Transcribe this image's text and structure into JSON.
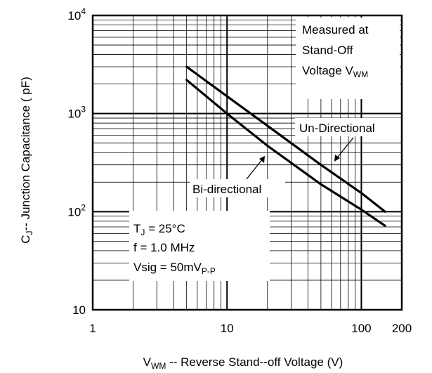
{
  "chart_data": {
    "type": "line",
    "xscale": "log",
    "yscale": "log",
    "xlim": [
      1,
      200
    ],
    "ylim": [
      10,
      10000
    ],
    "grid": true,
    "xlabel": {
      "main": "V",
      "sub": "WM",
      "rest": " -- Reverse Stand--off Voltage (V)"
    },
    "ylabel": {
      "main": "C",
      "sub": "J",
      "rest": "-- Junction Capacitance ( pF)"
    },
    "x_tick_labels": [
      {
        "value": 1,
        "label": "1"
      },
      {
        "value": 10,
        "label": "10"
      },
      {
        "value": 100,
        "label": "100"
      },
      {
        "value": 200,
        "label": "200"
      }
    ],
    "y_tick_labels": [
      {
        "value": 10,
        "base": "10",
        "exp": ""
      },
      {
        "value": 100,
        "base": "10",
        "exp": "2"
      },
      {
        "value": 1000,
        "base": "10",
        "exp": "3"
      },
      {
        "value": 10000,
        "base": "10",
        "exp": "4"
      }
    ],
    "series": [
      {
        "name": "Un-Directional",
        "x": [
          5,
          10,
          20,
          50,
          100,
          150
        ],
        "y": [
          3000,
          1500,
          750,
          300,
          155,
          100
        ]
      },
      {
        "name": "Bi-directional",
        "x": [
          5,
          10,
          20,
          50,
          100,
          150
        ],
        "y": [
          2200,
          1000,
          470,
          190,
          105,
          72
        ]
      }
    ],
    "annotations": {
      "measured": [
        "Measured at",
        "Stand-Off",
        "Voltage V"
      ],
      "measured_sub": "WM",
      "conditions": {
        "line1_main": "T",
        "line1_sub": "J",
        "line1_rest": " = 25°C",
        "line2": "f = 1.0 MHz",
        "line3_main": "V",
        "line3_mid": "sig = 50mV",
        "line3_sub": "P-P"
      }
    }
  }
}
